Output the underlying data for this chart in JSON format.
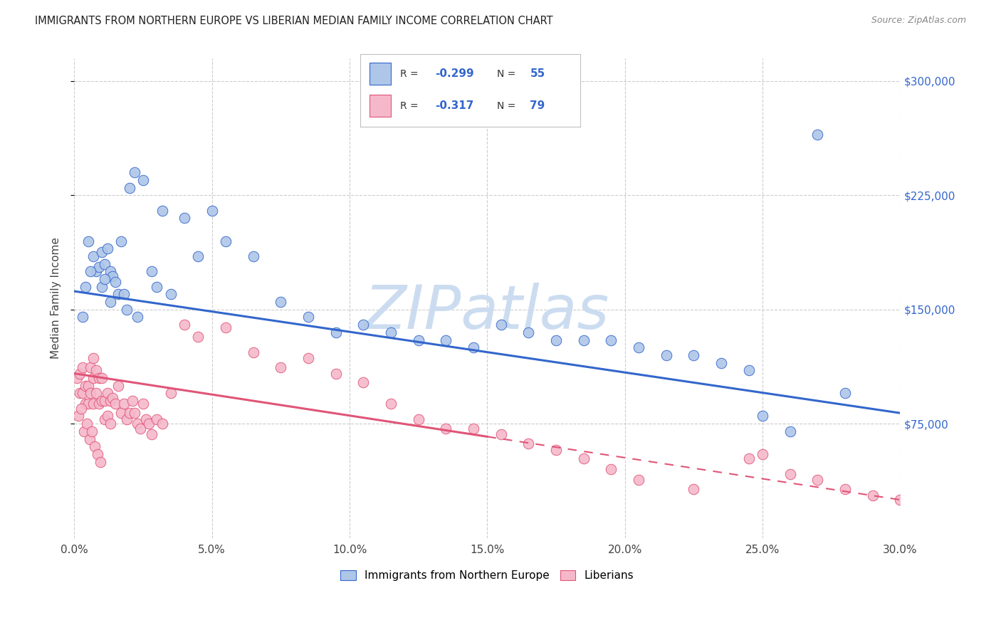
{
  "title": "IMMIGRANTS FROM NORTHERN EUROPE VS LIBERIAN MEDIAN FAMILY INCOME CORRELATION CHART",
  "source": "Source: ZipAtlas.com",
  "ylabel": "Median Family Income",
  "xlabel_ticks": [
    "0.0%",
    "5.0%",
    "10.0%",
    "15.0%",
    "20.0%",
    "25.0%",
    "30.0%"
  ],
  "xlabel_vals": [
    0,
    5,
    10,
    15,
    20,
    25,
    30
  ],
  "ylabel_ticks": [
    "$75,000",
    "$150,000",
    "$225,000",
    "$300,000"
  ],
  "ylabel_vals": [
    75000,
    150000,
    225000,
    300000
  ],
  "xlim": [
    0,
    30
  ],
  "ylim": [
    0,
    315000
  ],
  "blue_R": "-0.299",
  "blue_N": "55",
  "pink_R": "-0.317",
  "pink_N": "79",
  "blue_color": "#aec6e8",
  "pink_color": "#f5b8cb",
  "blue_line_color": "#3366cc",
  "pink_line_color": "#e05577",
  "watermark": "ZIPatlas",
  "watermark_color": "#ccdcf0",
  "legend_label_blue": "Immigrants from Northern Europe",
  "legend_label_pink": "Liberians",
  "blue_scatter_x": [
    0.3,
    0.5,
    0.7,
    0.8,
    0.9,
    1.0,
    1.0,
    1.1,
    1.2,
    1.3,
    1.4,
    1.5,
    1.6,
    1.7,
    1.8,
    2.0,
    2.2,
    2.5,
    2.8,
    3.0,
    3.2,
    3.5,
    4.0,
    4.5,
    5.0,
    5.5,
    6.5,
    7.5,
    8.5,
    9.5,
    10.5,
    11.5,
    12.5,
    13.5,
    14.5,
    15.5,
    16.5,
    17.5,
    18.5,
    19.5,
    20.5,
    21.5,
    22.5,
    23.5,
    24.5,
    25.0,
    26.0,
    27.0,
    28.0,
    0.4,
    0.6,
    1.1,
    1.3,
    1.9,
    2.3
  ],
  "blue_scatter_y": [
    145000,
    195000,
    185000,
    175000,
    178000,
    188000,
    165000,
    180000,
    190000,
    175000,
    172000,
    168000,
    160000,
    195000,
    160000,
    230000,
    240000,
    235000,
    175000,
    165000,
    215000,
    160000,
    210000,
    185000,
    215000,
    195000,
    185000,
    155000,
    145000,
    135000,
    140000,
    135000,
    130000,
    130000,
    125000,
    140000,
    135000,
    130000,
    130000,
    130000,
    125000,
    120000,
    120000,
    115000,
    110000,
    80000,
    70000,
    265000,
    95000,
    165000,
    175000,
    170000,
    155000,
    150000,
    145000
  ],
  "pink_scatter_x": [
    0.1,
    0.2,
    0.2,
    0.3,
    0.3,
    0.4,
    0.4,
    0.5,
    0.5,
    0.6,
    0.6,
    0.7,
    0.7,
    0.7,
    0.8,
    0.8,
    0.9,
    0.9,
    1.0,
    1.0,
    1.1,
    1.1,
    1.2,
    1.2,
    1.3,
    1.3,
    1.4,
    1.5,
    1.6,
    1.7,
    1.8,
    1.9,
    2.0,
    2.1,
    2.2,
    2.3,
    2.4,
    2.5,
    2.6,
    2.7,
    2.8,
    3.0,
    3.2,
    3.5,
    4.0,
    4.5,
    5.5,
    6.5,
    7.5,
    8.5,
    9.5,
    10.5,
    11.5,
    12.5,
    13.5,
    14.5,
    15.5,
    16.5,
    17.5,
    18.5,
    19.5,
    20.5,
    22.5,
    24.5,
    25.0,
    26.0,
    27.0,
    28.0,
    29.0,
    30.0,
    0.15,
    0.25,
    0.35,
    0.45,
    0.55,
    0.65,
    0.75,
    0.85,
    0.95
  ],
  "pink_scatter_y": [
    105000,
    108000,
    95000,
    112000,
    95000,
    100000,
    88000,
    100000,
    88000,
    112000,
    95000,
    118000,
    105000,
    88000,
    110000,
    95000,
    105000,
    88000,
    105000,
    90000,
    90000,
    78000,
    95000,
    80000,
    90000,
    75000,
    92000,
    88000,
    100000,
    82000,
    88000,
    78000,
    82000,
    90000,
    82000,
    75000,
    72000,
    88000,
    78000,
    75000,
    68000,
    78000,
    75000,
    95000,
    140000,
    132000,
    138000,
    122000,
    112000,
    118000,
    108000,
    102000,
    88000,
    78000,
    72000,
    72000,
    68000,
    62000,
    58000,
    52000,
    45000,
    38000,
    32000,
    52000,
    55000,
    42000,
    38000,
    32000,
    28000,
    25000,
    80000,
    85000,
    70000,
    75000,
    65000,
    70000,
    60000,
    55000,
    50000
  ],
  "blue_line_x0": 0,
  "blue_line_y0": 162000,
  "blue_line_x1": 30,
  "blue_line_y1": 82000,
  "pink_line_x0": 0,
  "pink_line_y0": 108000,
  "pink_line_x1": 30,
  "pink_line_y1": 25000,
  "pink_solid_end": 15,
  "pink_dashed_start": 15
}
